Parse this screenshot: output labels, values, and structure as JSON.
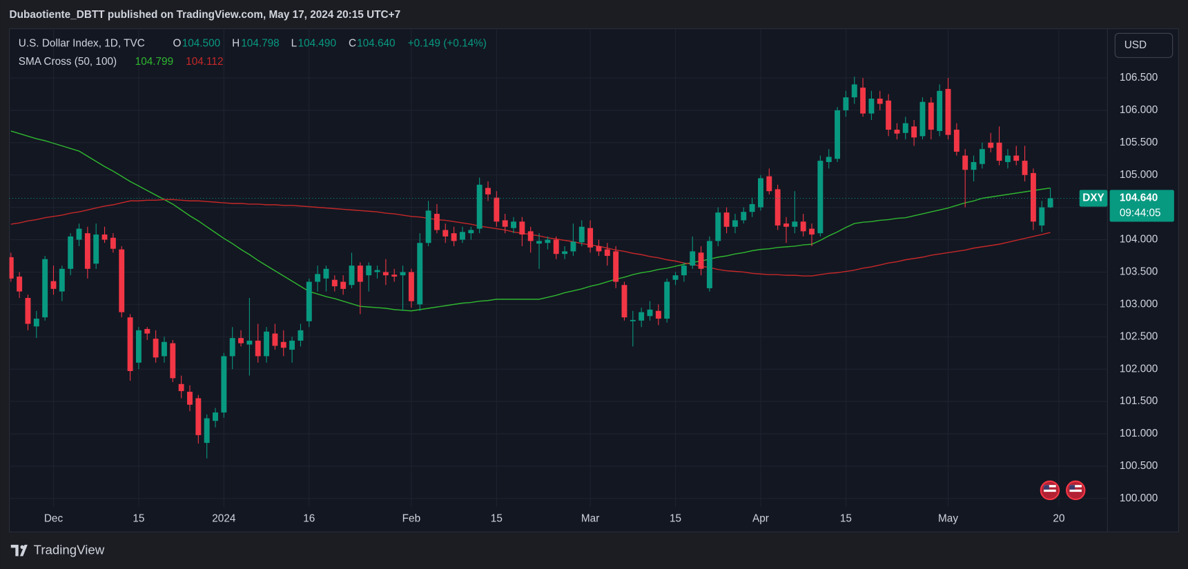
{
  "header": {
    "publisher": "Dubaotiente_DBTT published on TradingView.com, May 17, 2024 20:15 UTC+7"
  },
  "toolbar": {
    "currency": "USD"
  },
  "footer": {
    "brand": "TradingView"
  },
  "chart_data": {
    "type": "candlestick",
    "title": "U.S. Dollar Index, 1D, TVC",
    "ohlc_legend": {
      "open_key": "O",
      "open": "104.500",
      "high_key": "H",
      "high": "104.798",
      "low_key": "L",
      "low": "104.490",
      "close_key": "C",
      "close": "104.640",
      "change": "+0.149 (+0.14%)"
    },
    "indicator": "SMA Cross (50, 100)",
    "symbol_tag": "DXY",
    "last_price_label": "104.640",
    "countdown": "09:44:05",
    "up_color": "#089981",
    "down_color": "#f23645",
    "grid": true,
    "xlim": [
      -0.18,
      128.7
    ],
    "xticks": [
      {
        "value": 5,
        "label": "Dec"
      },
      15,
      {
        "value": 25,
        "label": "2024"
      },
      {
        "value": 35,
        "label": "16"
      },
      {
        "value": 47,
        "label": "Feb"
      },
      {
        "value": 57,
        "label": "15"
      },
      {
        "value": 68,
        "label": "Mar"
      },
      {
        "value": 78,
        "label": "15"
      },
      {
        "value": 88,
        "label": "Apr"
      },
      {
        "value": 98,
        "label": "15"
      },
      {
        "value": 110,
        "label": "May"
      },
      {
        "value": 123,
        "label": "20"
      }
    ],
    "ylim": [
      99.87,
      107.26
    ],
    "yticks": [
      {
        "value": 100,
        "label": "100.000"
      },
      {
        "value": 100.5,
        "label": "100.500"
      },
      {
        "value": 101,
        "label": "101.000"
      },
      {
        "value": 101.5,
        "label": "101.500"
      },
      {
        "value": 102,
        "label": "102.000"
      },
      {
        "value": 102.5,
        "label": "102.500"
      },
      {
        "value": 103,
        "label": "103.000"
      },
      {
        "value": 103.5,
        "label": "103.500"
      },
      {
        "value": 104,
        "label": "104.000"
      },
      {
        "value": 104.5,
        "label": "104.500"
      },
      {
        "value": 105,
        "label": "105.000"
      },
      {
        "value": 105.5,
        "label": "105.500"
      },
      {
        "value": 106,
        "label": "106.000"
      },
      {
        "value": 106.5,
        "label": "106.500"
      }
    ],
    "open": [
      103.73,
      103.43,
      103.1,
      102.66,
      102.8,
      103.36,
      103.2,
      103.55,
      104.0,
      104.1,
      103.63,
      104.08,
      104.03,
      103.85,
      102.8,
      102.1,
      102.62,
      102.47,
      102.2,
      102.4,
      101.77,
      101.65,
      101.55,
      100.86,
      101.2,
      101.33,
      102.2,
      102.48,
      102.38,
      102.44,
      102.2,
      102.55,
      102.42,
      102.3,
      102.44,
      102.74,
      103.35,
      103.4,
      103.38,
      103.35,
      103.3,
      103.6,
      103.45,
      103.5,
      103.5,
      103.46,
      103.45,
      103.5,
      103.0,
      103.95,
      104.4,
      104.15,
      104.1,
      104.0,
      104.1,
      104.17,
      104.8,
      104.65,
      104.3,
      104.18,
      104.28,
      104.13,
      103.94,
      103.95,
      104.0,
      103.78,
      103.82,
      103.96,
      104.18,
      103.9,
      103.85,
      103.82,
      103.3,
      102.74,
      102.75,
      102.82,
      102.9,
      102.78,
      103.38,
      103.45,
      103.6,
      103.8,
      103.25,
      103.98,
      104.42,
      104.2,
      104.3,
      104.43,
      104.5,
      104.98,
      104.78,
      104.25,
      104.2,
      104.28,
      104.17,
      104.1,
      105.2,
      105.25,
      106.0,
      106.2,
      106.35,
      105.95,
      106.18,
      106.15,
      105.7,
      105.65,
      105.75,
      105.6,
      106.12,
      105.68,
      106.33,
      105.7,
      105.3,
      105.08,
      105.17,
      105.5,
      105.5,
      105.2,
      105.3,
      105.22,
      105.03,
      104.22,
      104.5
    ],
    "high": [
      103.8,
      103.5,
      103.15,
      102.9,
      103.75,
      103.6,
      103.6,
      104.1,
      104.25,
      104.2,
      104.25,
      104.2,
      104.1,
      103.9,
      102.85,
      102.65,
      102.65,
      102.6,
      102.5,
      102.45,
      101.9,
      101.75,
      101.6,
      101.3,
      101.4,
      102.25,
      102.65,
      102.6,
      103.1,
      102.7,
      102.65,
      102.7,
      102.6,
      102.5,
      102.7,
      103.4,
      103.6,
      103.6,
      103.45,
      103.45,
      103.8,
      103.65,
      103.65,
      103.6,
      103.7,
      103.55,
      103.6,
      103.55,
      104.1,
      104.6,
      104.55,
      104.25,
      104.2,
      104.2,
      104.2,
      104.96,
      104.9,
      104.75,
      104.4,
      104.35,
      104.35,
      104.2,
      104.1,
      104.05,
      104.05,
      103.9,
      104.25,
      104.3,
      104.3,
      104.0,
      103.95,
      103.9,
      103.35,
      102.9,
      102.95,
      103.05,
      103.0,
      103.4,
      103.5,
      103.65,
      104.05,
      103.9,
      104.05,
      104.5,
      104.5,
      104.4,
      104.5,
      104.65,
      105.0,
      105.1,
      104.85,
      104.35,
      104.75,
      104.4,
      104.25,
      105.3,
      105.4,
      106.05,
      106.3,
      106.52,
      106.5,
      106.3,
      106.3,
      106.25,
      105.8,
      105.9,
      105.85,
      106.2,
      106.2,
      106.4,
      106.5,
      105.8,
      105.4,
      105.3,
      105.5,
      105.65,
      105.75,
      105.4,
      105.45,
      105.45,
      105.1,
      104.6,
      104.798
    ],
    "low": [
      103.35,
      103.1,
      102.6,
      102.48,
      102.75,
      103.15,
      103.05,
      103.45,
      103.9,
      103.4,
      103.55,
      103.95,
      103.8,
      102.8,
      101.82,
      102.0,
      102.45,
      102.1,
      102.1,
      101.8,
      101.55,
      101.35,
      100.85,
      100.62,
      101.1,
      101.25,
      102.0,
      102.35,
      101.9,
      102.1,
      102.1,
      102.3,
      102.2,
      102.1,
      102.35,
      102.65,
      103.2,
      103.2,
      103.2,
      103.15,
      103.25,
      102.85,
      103.2,
      103.4,
      103.3,
      103.35,
      102.9,
      102.95,
      102.9,
      103.9,
      104.1,
      103.95,
      103.9,
      103.95,
      104.0,
      104.1,
      104.6,
      104.2,
      104.1,
      104.1,
      103.9,
      103.8,
      103.55,
      103.85,
      103.7,
      103.7,
      103.75,
      103.9,
      103.8,
      103.75,
      103.6,
      103.25,
      102.75,
      102.35,
      102.65,
      102.75,
      102.68,
      102.72,
      103.3,
      103.35,
      103.55,
      103.45,
      103.2,
      103.9,
      104.1,
      104.1,
      104.25,
      104.35,
      104.45,
      104.7,
      104.15,
      103.95,
      104.1,
      104.05,
      103.9,
      104.05,
      105.1,
      105.2,
      105.9,
      106.1,
      105.9,
      105.85,
      106.0,
      105.6,
      105.55,
      105.55,
      105.45,
      105.55,
      105.55,
      105.6,
      105.55,
      105.3,
      104.5,
      104.9,
      105.1,
      105.35,
      105.15,
      105.1,
      105.15,
      104.9,
      104.15,
      104.12,
      104.49
    ],
    "close": [
      103.4,
      103.2,
      102.7,
      102.78,
      103.7,
      103.24,
      103.55,
      104.05,
      104.17,
      103.55,
      104.08,
      104.0,
      103.86,
      102.88,
      101.97,
      102.6,
      102.55,
      102.18,
      102.42,
      101.86,
      101.66,
      101.45,
      100.98,
      101.24,
      101.33,
      102.2,
      102.48,
      102.4,
      102.44,
      102.2,
      102.58,
      102.36,
      102.33,
      102.44,
      102.6,
      103.35,
      103.47,
      103.55,
      103.28,
      103.24,
      103.6,
      103.35,
      103.6,
      103.53,
      103.45,
      103.43,
      103.5,
      103.05,
      103.95,
      104.45,
      104.15,
      104.05,
      103.98,
      104.12,
      104.15,
      104.85,
      104.7,
      104.28,
      104.2,
      104.28,
      104.08,
      103.98,
      103.98,
      104.0,
      103.78,
      103.82,
      103.97,
      104.2,
      103.88,
      103.82,
      103.75,
      103.35,
      102.8,
      102.76,
      102.88,
      102.92,
      102.78,
      103.35,
      103.45,
      103.6,
      103.82,
      103.55,
      103.98,
      104.42,
      104.2,
      104.3,
      104.43,
      104.55,
      104.95,
      104.75,
      104.22,
      104.2,
      104.28,
      104.13,
      104.08,
      105.22,
      105.28,
      106.0,
      106.2,
      106.4,
      105.95,
      106.18,
      106.1,
      105.7,
      105.64,
      105.8,
      105.58,
      106.13,
      105.7,
      106.3,
      105.62,
      105.36,
      105.08,
      105.2,
      105.4,
      105.42,
      105.22,
      105.3,
      105.22,
      105.0,
      104.28,
      104.5,
      104.64
    ],
    "series": [
      {
        "color": "#2fb82f",
        "values": [
          105.68,
          105.64,
          105.6,
          105.56,
          105.53,
          105.49,
          105.45,
          105.41,
          105.37,
          105.29,
          105.21,
          105.13,
          105.06,
          104.98,
          104.9,
          104.83,
          104.76,
          104.69,
          104.62,
          104.55,
          104.46,
          104.37,
          104.29,
          104.2,
          104.11,
          104.02,
          103.94,
          103.85,
          103.77,
          103.68,
          103.6,
          103.52,
          103.44,
          103.36,
          103.28,
          103.2,
          103.16,
          103.12,
          103.09,
          103.05,
          103.01,
          102.97,
          102.96,
          102.95,
          102.94,
          102.92,
          102.91,
          102.9,
          102.92,
          102.94,
          102.96,
          102.98,
          103.0,
          103.02,
          103.03,
          103.05,
          103.06,
          103.08,
          103.08,
          103.08,
          103.08,
          103.08,
          103.08,
          103.11,
          103.14,
          103.18,
          103.21,
          103.24,
          103.28,
          103.31,
          103.35,
          103.39,
          103.42,
          103.46,
          103.49,
          103.51,
          103.54,
          103.56,
          103.59,
          103.62,
          103.65,
          103.67,
          103.7,
          103.73,
          103.75,
          103.78,
          103.8,
          103.83,
          103.85,
          103.86,
          103.88,
          103.89,
          103.9,
          103.92,
          103.93,
          103.99,
          104.06,
          104.12,
          104.19,
          104.25,
          104.27,
          104.28,
          104.3,
          104.31,
          104.33,
          104.34,
          104.37,
          104.4,
          104.43,
          104.46,
          104.49,
          104.53,
          104.57,
          104.6,
          104.64,
          104.66,
          104.68,
          104.7,
          104.72,
          104.74,
          104.76,
          104.78,
          104.799
        ]
      },
      {
        "color": "#c62828",
        "values": [
          104.24,
          104.26,
          104.29,
          104.31,
          104.34,
          104.36,
          104.38,
          104.41,
          104.43,
          104.46,
          104.49,
          104.52,
          104.54,
          104.57,
          104.6,
          104.6,
          104.61,
          104.61,
          104.62,
          104.62,
          104.61,
          104.6,
          104.6,
          104.59,
          104.58,
          104.57,
          104.56,
          104.56,
          104.55,
          104.55,
          104.54,
          104.54,
          104.53,
          104.53,
          104.52,
          104.51,
          104.5,
          104.49,
          104.48,
          104.47,
          104.46,
          104.45,
          104.44,
          104.43,
          104.41,
          104.4,
          104.38,
          104.36,
          104.35,
          104.33,
          104.31,
          104.3,
          104.28,
          104.26,
          104.24,
          104.21,
          104.19,
          104.17,
          104.15,
          104.12,
          104.1,
          104.08,
          104.06,
          104.03,
          104.01,
          103.99,
          103.97,
          103.94,
          103.92,
          103.9,
          103.87,
          103.84,
          103.82,
          103.79,
          103.77,
          103.74,
          103.72,
          103.69,
          103.67,
          103.64,
          103.62,
          103.59,
          103.57,
          103.54,
          103.52,
          103.51,
          103.5,
          103.48,
          103.47,
          103.46,
          103.46,
          103.45,
          103.45,
          103.44,
          103.44,
          103.46,
          103.48,
          103.49,
          103.51,
          103.53,
          103.56,
          103.58,
          103.61,
          103.64,
          103.66,
          103.69,
          103.71,
          103.73,
          103.76,
          103.78,
          103.8,
          103.82,
          103.84,
          103.87,
          103.89,
          103.91,
          103.93,
          103.96,
          103.99,
          104.02,
          104.05,
          104.08,
          104.112
        ]
      }
    ]
  }
}
